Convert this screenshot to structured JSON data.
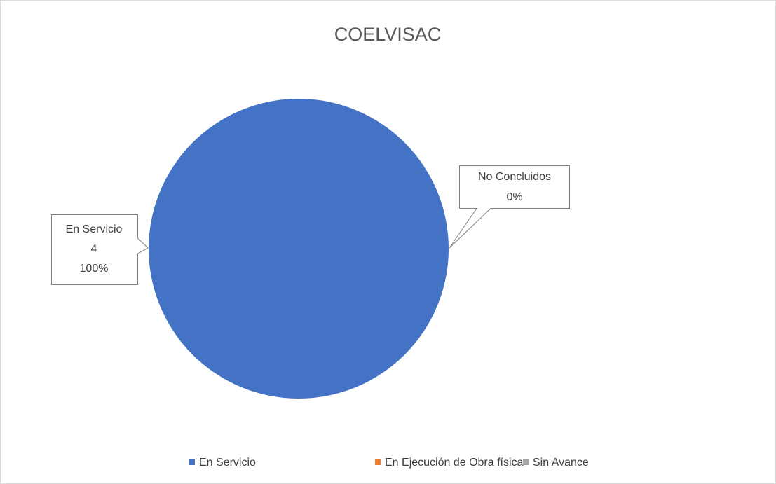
{
  "chart_data": {
    "type": "pie",
    "title": "COELVISAC",
    "categories": [
      "En Servicio",
      "En Ejecución de Obra física",
      "Sin Avance"
    ],
    "values": [
      4,
      0,
      0
    ],
    "colors": [
      "#4472c4",
      "#ed7d31",
      "#a5a5a5"
    ],
    "callouts": [
      {
        "name": "En Servicio",
        "percent": "100%"
      },
      {
        "name": "No Concluidos",
        "percent": "0%"
      }
    ],
    "legend": "bottom"
  }
}
